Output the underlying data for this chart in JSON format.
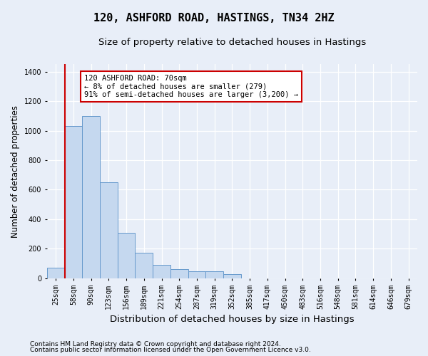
{
  "title": "120, ASHFORD ROAD, HASTINGS, TN34 2HZ",
  "subtitle": "Size of property relative to detached houses in Hastings",
  "xlabel": "Distribution of detached houses by size in Hastings",
  "ylabel": "Number of detached properties",
  "footer_line1": "Contains HM Land Registry data © Crown copyright and database right 2024.",
  "footer_line2": "Contains public sector information licensed under the Open Government Licence v3.0.",
  "bar_labels": [
    "25sqm",
    "58sqm",
    "90sqm",
    "123sqm",
    "156sqm",
    "189sqm",
    "221sqm",
    "254sqm",
    "287sqm",
    "319sqm",
    "352sqm",
    "385sqm",
    "417sqm",
    "450sqm",
    "483sqm",
    "516sqm",
    "548sqm",
    "581sqm",
    "614sqm",
    "646sqm",
    "679sqm"
  ],
  "bar_values": [
    70,
    1030,
    1100,
    650,
    310,
    175,
    90,
    60,
    45,
    45,
    30,
    0,
    0,
    0,
    0,
    0,
    0,
    0,
    0,
    0,
    0
  ],
  "bar_color": "#c5d8ef",
  "bar_edge_color": "#6699cc",
  "red_line_index": 1,
  "annotation_text": "120 ASHFORD ROAD: 70sqm\n← 8% of detached houses are smaller (279)\n91% of semi-detached houses are larger (3,200) →",
  "annotation_box_color": "white",
  "annotation_box_edge_color": "#cc0000",
  "background_color": "#e8eef8",
  "grid_color": "white",
  "ylim": [
    0,
    1450
  ],
  "yticks": [
    0,
    200,
    400,
    600,
    800,
    1000,
    1200,
    1400
  ],
  "title_fontsize": 11,
  "subtitle_fontsize": 9.5,
  "tick_fontsize": 7,
  "ylabel_fontsize": 8.5,
  "xlabel_fontsize": 9.5,
  "footer_fontsize": 6.5
}
